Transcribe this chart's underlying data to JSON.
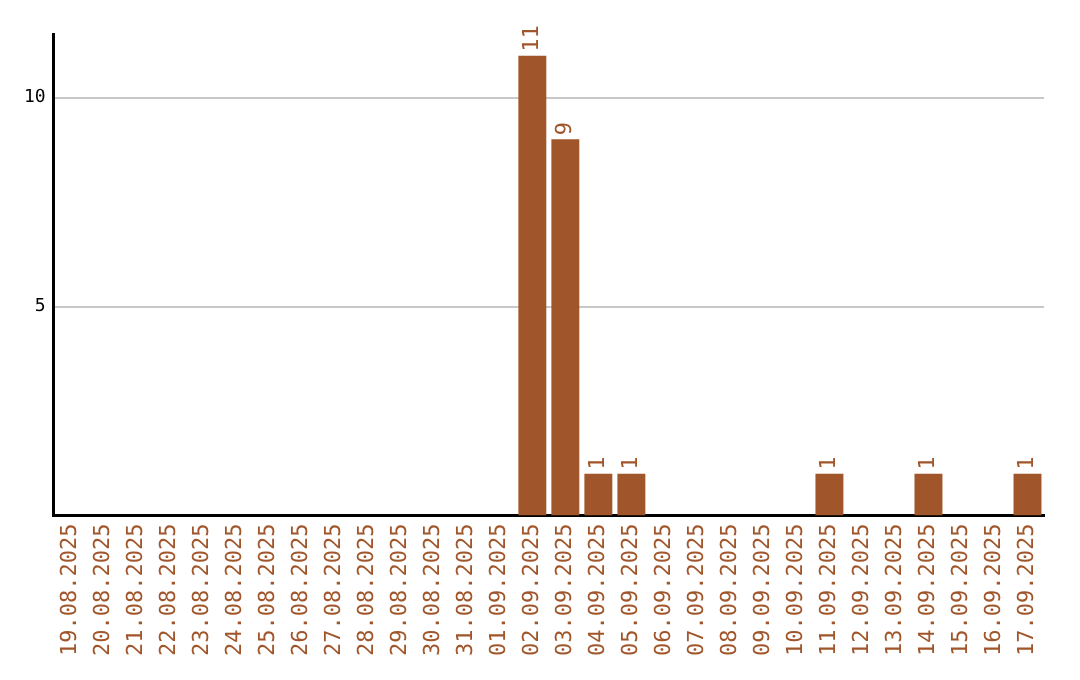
{
  "chart_data": {
    "type": "bar",
    "categories": [
      "19.08.2025",
      "20.08.2025",
      "21.08.2025",
      "22.08.2025",
      "23.08.2025",
      "24.08.2025",
      "25.08.2025",
      "26.08.2025",
      "27.08.2025",
      "28.08.2025",
      "29.08.2025",
      "30.08.2025",
      "31.08.2025",
      "01.09.2025",
      "02.09.2025",
      "03.09.2025",
      "04.09.2025",
      "05.09.2025",
      "06.09.2025",
      "07.09.2025",
      "08.09.2025",
      "09.09.2025",
      "10.09.2025",
      "11.09.2025",
      "12.09.2025",
      "13.09.2025",
      "14.09.2025",
      "15.09.2025",
      "16.09.2025",
      "17.09.2025"
    ],
    "values": [
      0,
      0,
      0,
      0,
      0,
      0,
      0,
      0,
      0,
      0,
      0,
      0,
      0,
      0,
      11,
      9,
      1,
      1,
      0,
      0,
      0,
      0,
      0,
      1,
      0,
      0,
      1,
      0,
      0,
      1
    ],
    "value_labels": [
      null,
      null,
      null,
      null,
      null,
      null,
      null,
      null,
      null,
      null,
      null,
      null,
      null,
      null,
      "11",
      "9",
      "1",
      "1",
      null,
      null,
      null,
      null,
      null,
      "1",
      null,
      null,
      "1",
      null,
      null,
      "1"
    ],
    "color": "#a0562a",
    "ylim": [
      0,
      11.5
    ],
    "yticks": [
      5,
      10
    ],
    "grid": "y"
  }
}
